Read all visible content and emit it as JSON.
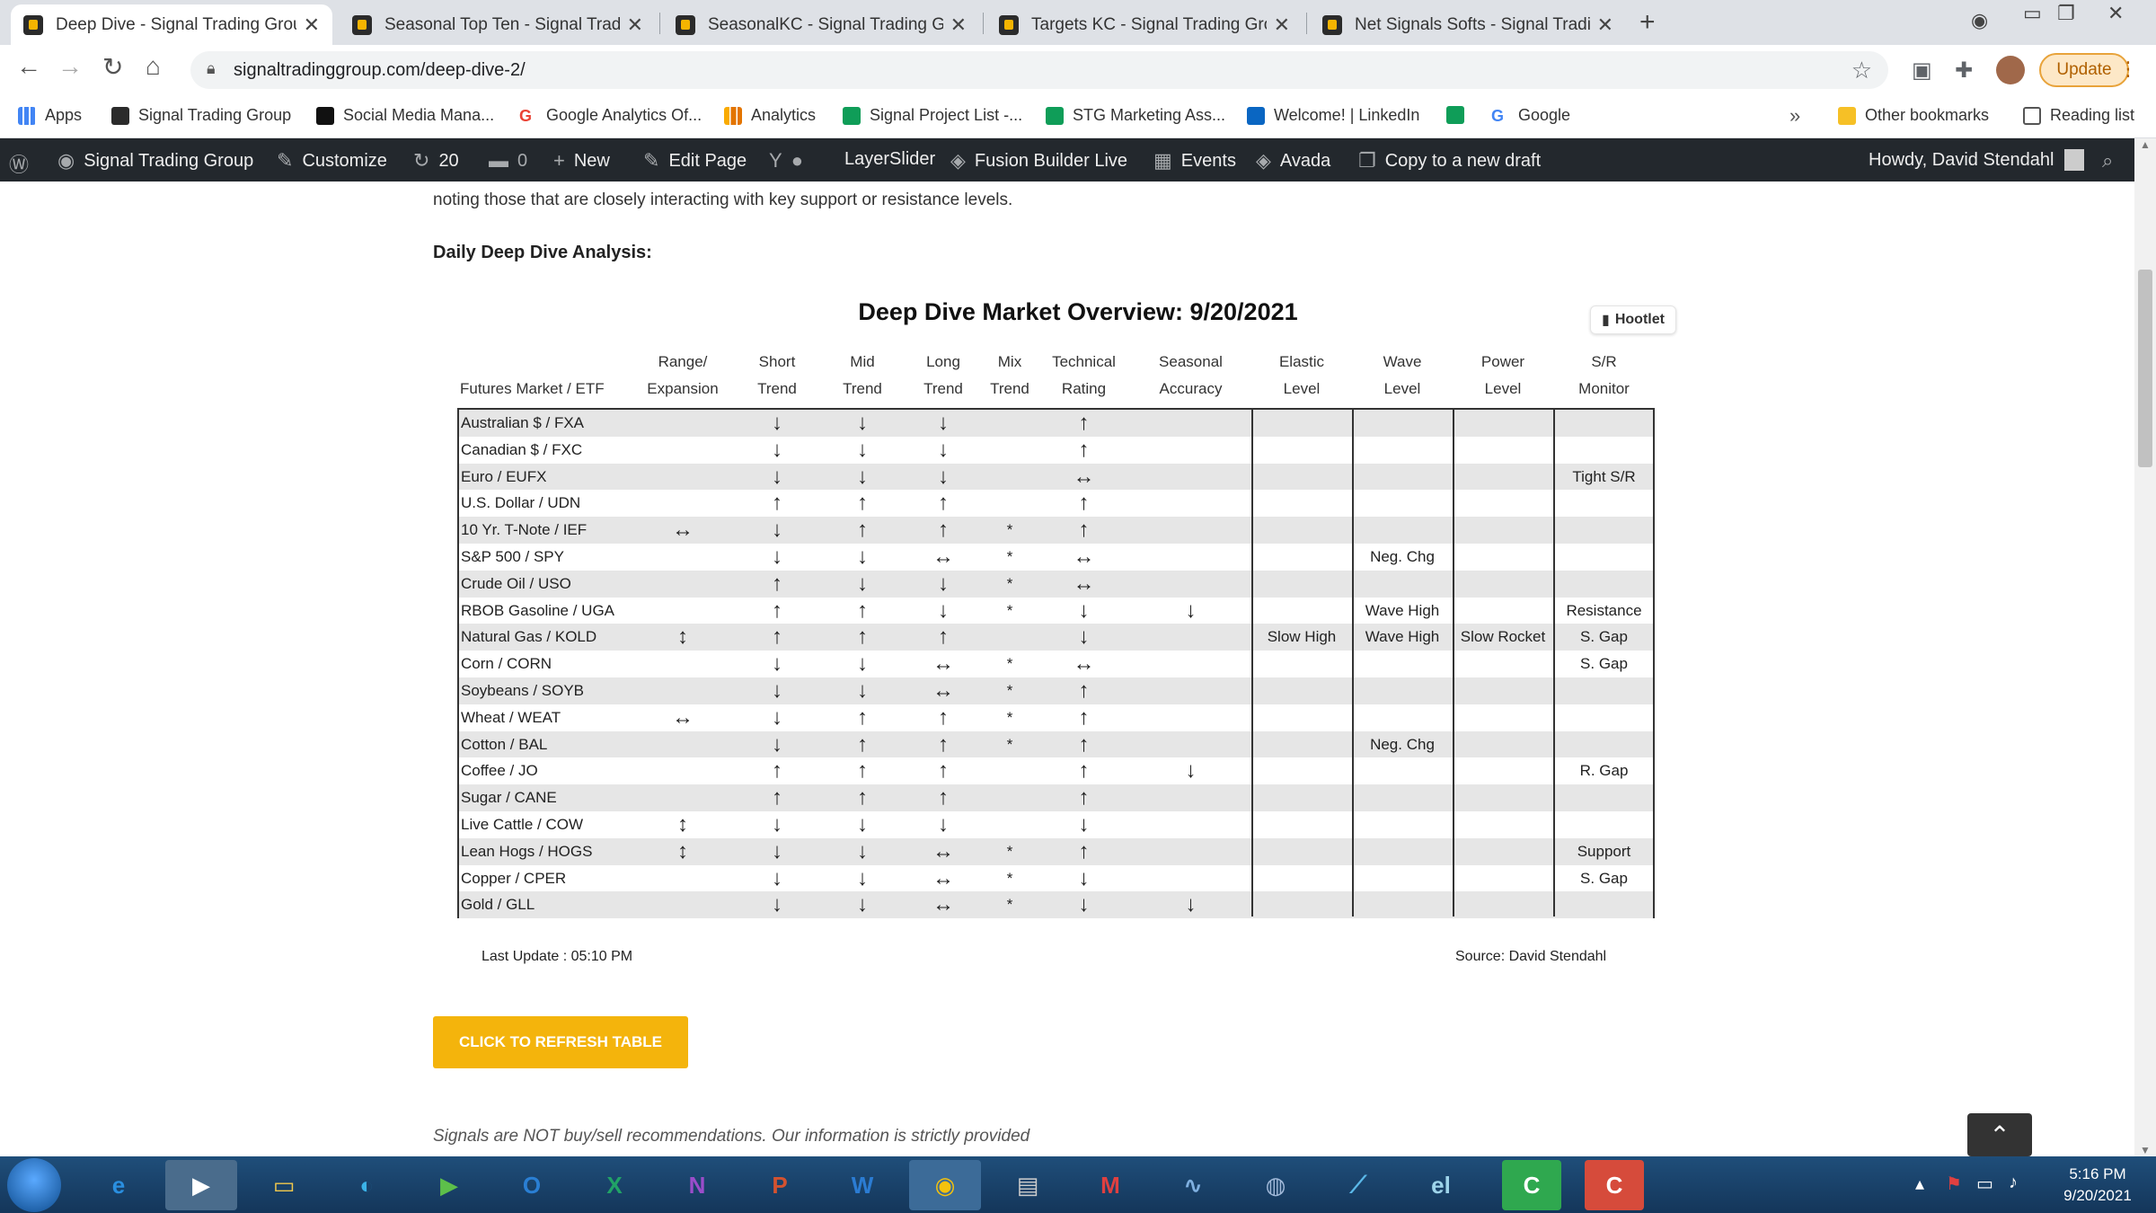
{
  "browser": {
    "tabs": [
      {
        "title": "Deep Dive - Signal Trading Group",
        "active": true
      },
      {
        "title": "Seasonal Top Ten - Signal Trading",
        "active": false
      },
      {
        "title": "SeasonalKC - Signal Trading Group",
        "active": false
      },
      {
        "title": "Targets KC - Signal Trading Group",
        "active": false
      },
      {
        "title": "Net Signals Softs - Signal Trading",
        "active": false
      }
    ],
    "url": "signaltradinggroup.com/deep-dive-2/",
    "update_label": "Update",
    "bookmarks": [
      "Apps",
      "Signal Trading Group",
      "Social Media Mana...",
      "Google Analytics Of...",
      "Analytics",
      "Signal Project List -...",
      "STG Marketing Ass...",
      "Welcome! | LinkedIn",
      "",
      "Google"
    ],
    "other_bookmarks": "Other bookmarks",
    "reading_list": "Reading list"
  },
  "wp_admin_bar": {
    "site_name": "Signal Trading Group",
    "customize": "Customize",
    "updates_count": "20",
    "comments_count": "0",
    "new": "New",
    "edit_page": "Edit Page",
    "layerslider": "LayerSlider",
    "fusion": "Fusion Builder Live",
    "events": "Events",
    "avada": "Avada",
    "copy_draft": "Copy to a new draft",
    "howdy": "Howdy, David Stendahl"
  },
  "content": {
    "intro_text": "noting those that are closely interacting with key support or resistance levels.",
    "section_label": "Daily Deep Dive Analysis:",
    "overview_title": "Deep Dive Market Overview: 9/20/2021",
    "hootlet": "Hootlet",
    "last_update": "Last Update : 05:10 PM",
    "source": "Source: David Stendahl",
    "refresh_button": "CLICK TO REFRESH TABLE",
    "disclaimer": "Signals are NOT buy/sell recommendations. Our information is strictly provided"
  },
  "table": {
    "headers": [
      {
        "line1": "",
        "line2": "Futures Market / ETF"
      },
      {
        "line1": "Range/",
        "line2": "Expansion"
      },
      {
        "line1": "Short",
        "line2": "Trend"
      },
      {
        "line1": "Mid",
        "line2": "Trend"
      },
      {
        "line1": "Long",
        "line2": "Trend"
      },
      {
        "line1": "Mix",
        "line2": "Trend"
      },
      {
        "line1": "Technical",
        "line2": "Rating"
      },
      {
        "line1": "Seasonal",
        "line2": "Accuracy"
      },
      {
        "line1": "Elastic",
        "line2": "Level"
      },
      {
        "line1": "Wave",
        "line2": "Level"
      },
      {
        "line1": "Power",
        "line2": "Level"
      },
      {
        "line1": "S/R",
        "line2": "Monitor"
      }
    ],
    "rows": [
      {
        "market": "Australian $ / FXA",
        "range": "",
        "short": "↓",
        "mid": "↓",
        "long": "↓",
        "mix": "",
        "tech": "↑",
        "seasonal": "",
        "elastic": "",
        "wave": "",
        "power": "",
        "sr": ""
      },
      {
        "market": "Canadian $ / FXC",
        "range": "",
        "short": "↓",
        "mid": "↓",
        "long": "↓",
        "mix": "",
        "tech": "↑",
        "seasonal": "",
        "elastic": "",
        "wave": "",
        "power": "",
        "sr": ""
      },
      {
        "market": "Euro / EUFX",
        "range": "",
        "short": "↓",
        "mid": "↓",
        "long": "↓",
        "mix": "",
        "tech": "↔",
        "seasonal": "",
        "elastic": "",
        "wave": "",
        "power": "",
        "sr": "Tight S/R"
      },
      {
        "market": "U.S. Dollar / UDN",
        "range": "",
        "short": "↑",
        "mid": "↑",
        "long": "↑",
        "mix": "",
        "tech": "↑",
        "seasonal": "",
        "elastic": "",
        "wave": "",
        "power": "",
        "sr": ""
      },
      {
        "market": "10 Yr. T-Note / IEF",
        "range": "↔",
        "short": "↓",
        "mid": "↑",
        "long": "↑",
        "mix": "*",
        "tech": "↑",
        "seasonal": "",
        "elastic": "",
        "wave": "",
        "power": "",
        "sr": ""
      },
      {
        "market": "S&P 500 / SPY",
        "range": "",
        "short": "↓",
        "mid": "↓",
        "long": "↔",
        "mix": "*",
        "tech": "↔",
        "seasonal": "",
        "elastic": "",
        "wave": "Neg. Chg",
        "power": "",
        "sr": ""
      },
      {
        "market": "Crude Oil / USO",
        "range": "",
        "short": "↑",
        "mid": "↓",
        "long": "↓",
        "mix": "*",
        "tech": "↔",
        "seasonal": "",
        "elastic": "",
        "wave": "",
        "power": "",
        "sr": ""
      },
      {
        "market": "RBOB Gasoline / UGA",
        "range": "",
        "short": "↑",
        "mid": "↑",
        "long": "↓",
        "mix": "*",
        "tech": "↓",
        "seasonal": "↓",
        "elastic": "",
        "wave": "Wave High",
        "power": "",
        "sr": "Resistance"
      },
      {
        "market": "Natural Gas / KOLD",
        "range": "↕",
        "short": "↑",
        "mid": "↑",
        "long": "↑",
        "mix": "",
        "tech": "↓",
        "seasonal": "",
        "elastic": "Slow High",
        "wave": "Wave High",
        "power": "Slow Rocket",
        "sr": "S. Gap"
      },
      {
        "market": "Corn / CORN",
        "range": "",
        "short": "↓",
        "mid": "↓",
        "long": "↔",
        "mix": "*",
        "tech": "↔",
        "seasonal": "",
        "elastic": "",
        "wave": "",
        "power": "",
        "sr": "S. Gap"
      },
      {
        "market": "Soybeans / SOYB",
        "range": "",
        "short": "↓",
        "mid": "↓",
        "long": "↔",
        "mix": "*",
        "tech": "↑",
        "seasonal": "",
        "elastic": "",
        "wave": "",
        "power": "",
        "sr": ""
      },
      {
        "market": "Wheat / WEAT",
        "range": "↔",
        "short": "↓",
        "mid": "↑",
        "long": "↑",
        "mix": "*",
        "tech": "↑",
        "seasonal": "",
        "elastic": "",
        "wave": "",
        "power": "",
        "sr": ""
      },
      {
        "market": "Cotton / BAL",
        "range": "",
        "short": "↓",
        "mid": "↑",
        "long": "↑",
        "mix": "*",
        "tech": "↑",
        "seasonal": "",
        "elastic": "",
        "wave": "Neg. Chg",
        "power": "",
        "sr": ""
      },
      {
        "market": "Coffee / JO",
        "range": "",
        "short": "↑",
        "mid": "↑",
        "long": "↑",
        "mix": "",
        "tech": "↑",
        "seasonal": "↓",
        "elastic": "",
        "wave": "",
        "power": "",
        "sr": "R. Gap"
      },
      {
        "market": "Sugar / CANE",
        "range": "",
        "short": "↑",
        "mid": "↑",
        "long": "↑",
        "mix": "",
        "tech": "↑",
        "seasonal": "",
        "elastic": "",
        "wave": "",
        "power": "",
        "sr": ""
      },
      {
        "market": "Live Cattle / COW",
        "range": "↕",
        "short": "↓",
        "mid": "↓",
        "long": "↓",
        "mix": "",
        "tech": "↓",
        "seasonal": "",
        "elastic": "",
        "wave": "",
        "power": "",
        "sr": ""
      },
      {
        "market": "Lean Hogs / HOGS",
        "range": "↕",
        "short": "↓",
        "mid": "↓",
        "long": "↔",
        "mix": "*",
        "tech": "↑",
        "seasonal": "",
        "elastic": "",
        "wave": "",
        "power": "",
        "sr": "Support"
      },
      {
        "market": "Copper / CPER",
        "range": "",
        "short": "↓",
        "mid": "↓",
        "long": "↔",
        "mix": "*",
        "tech": "↓",
        "seasonal": "",
        "elastic": "",
        "wave": "",
        "power": "",
        "sr": "S. Gap"
      },
      {
        "market": "Gold / GLL",
        "range": "",
        "short": "↓",
        "mid": "↓",
        "long": "↔",
        "mix": "*",
        "tech": "↓",
        "seasonal": "↓",
        "elastic": "",
        "wave": "",
        "power": "",
        "sr": ""
      }
    ]
  },
  "taskbar": {
    "time": "5:16 PM",
    "date": "9/20/2021"
  }
}
